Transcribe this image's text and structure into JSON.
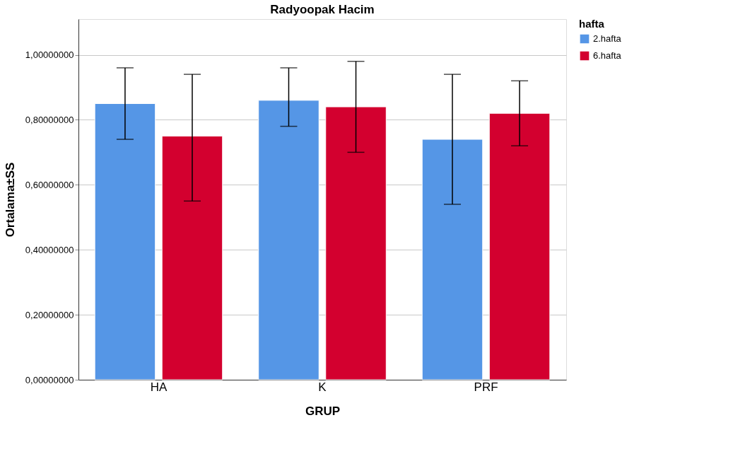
{
  "chart_data": {
    "type": "bar",
    "title": "Radyoopak Hacim",
    "xlabel": "GRUP",
    "ylabel": "Ortalama±SS",
    "legend_title": "hafta",
    "categories": [
      "HA",
      "K",
      "PRF"
    ],
    "series": [
      {
        "name": "2.hafta",
        "color": "#5596e6",
        "values": [
          0.85,
          0.86,
          0.74
        ],
        "errors": [
          [
            0.74,
            0.96
          ],
          [
            0.78,
            0.96
          ],
          [
            0.54,
            0.94
          ]
        ]
      },
      {
        "name": "6.hafta",
        "color": "#d3002f",
        "values": [
          0.75,
          0.84,
          0.82
        ],
        "errors": [
          [
            0.55,
            0.94
          ],
          [
            0.7,
            0.98
          ],
          [
            0.72,
            0.92
          ]
        ]
      }
    ],
    "ylim": [
      0,
      1.11
    ],
    "yticks": [
      {
        "value": 0,
        "label": "0,00000000"
      },
      {
        "value": 0.2,
        "label": "0,20000000"
      },
      {
        "value": 0.4,
        "label": "0,40000000"
      },
      {
        "value": 0.6,
        "label": "0,60000000"
      },
      {
        "value": 0.8,
        "label": "0,80000000"
      },
      {
        "value": 1.0,
        "label": "1,00000000"
      }
    ],
    "grid": "y",
    "legend": "top right"
  }
}
